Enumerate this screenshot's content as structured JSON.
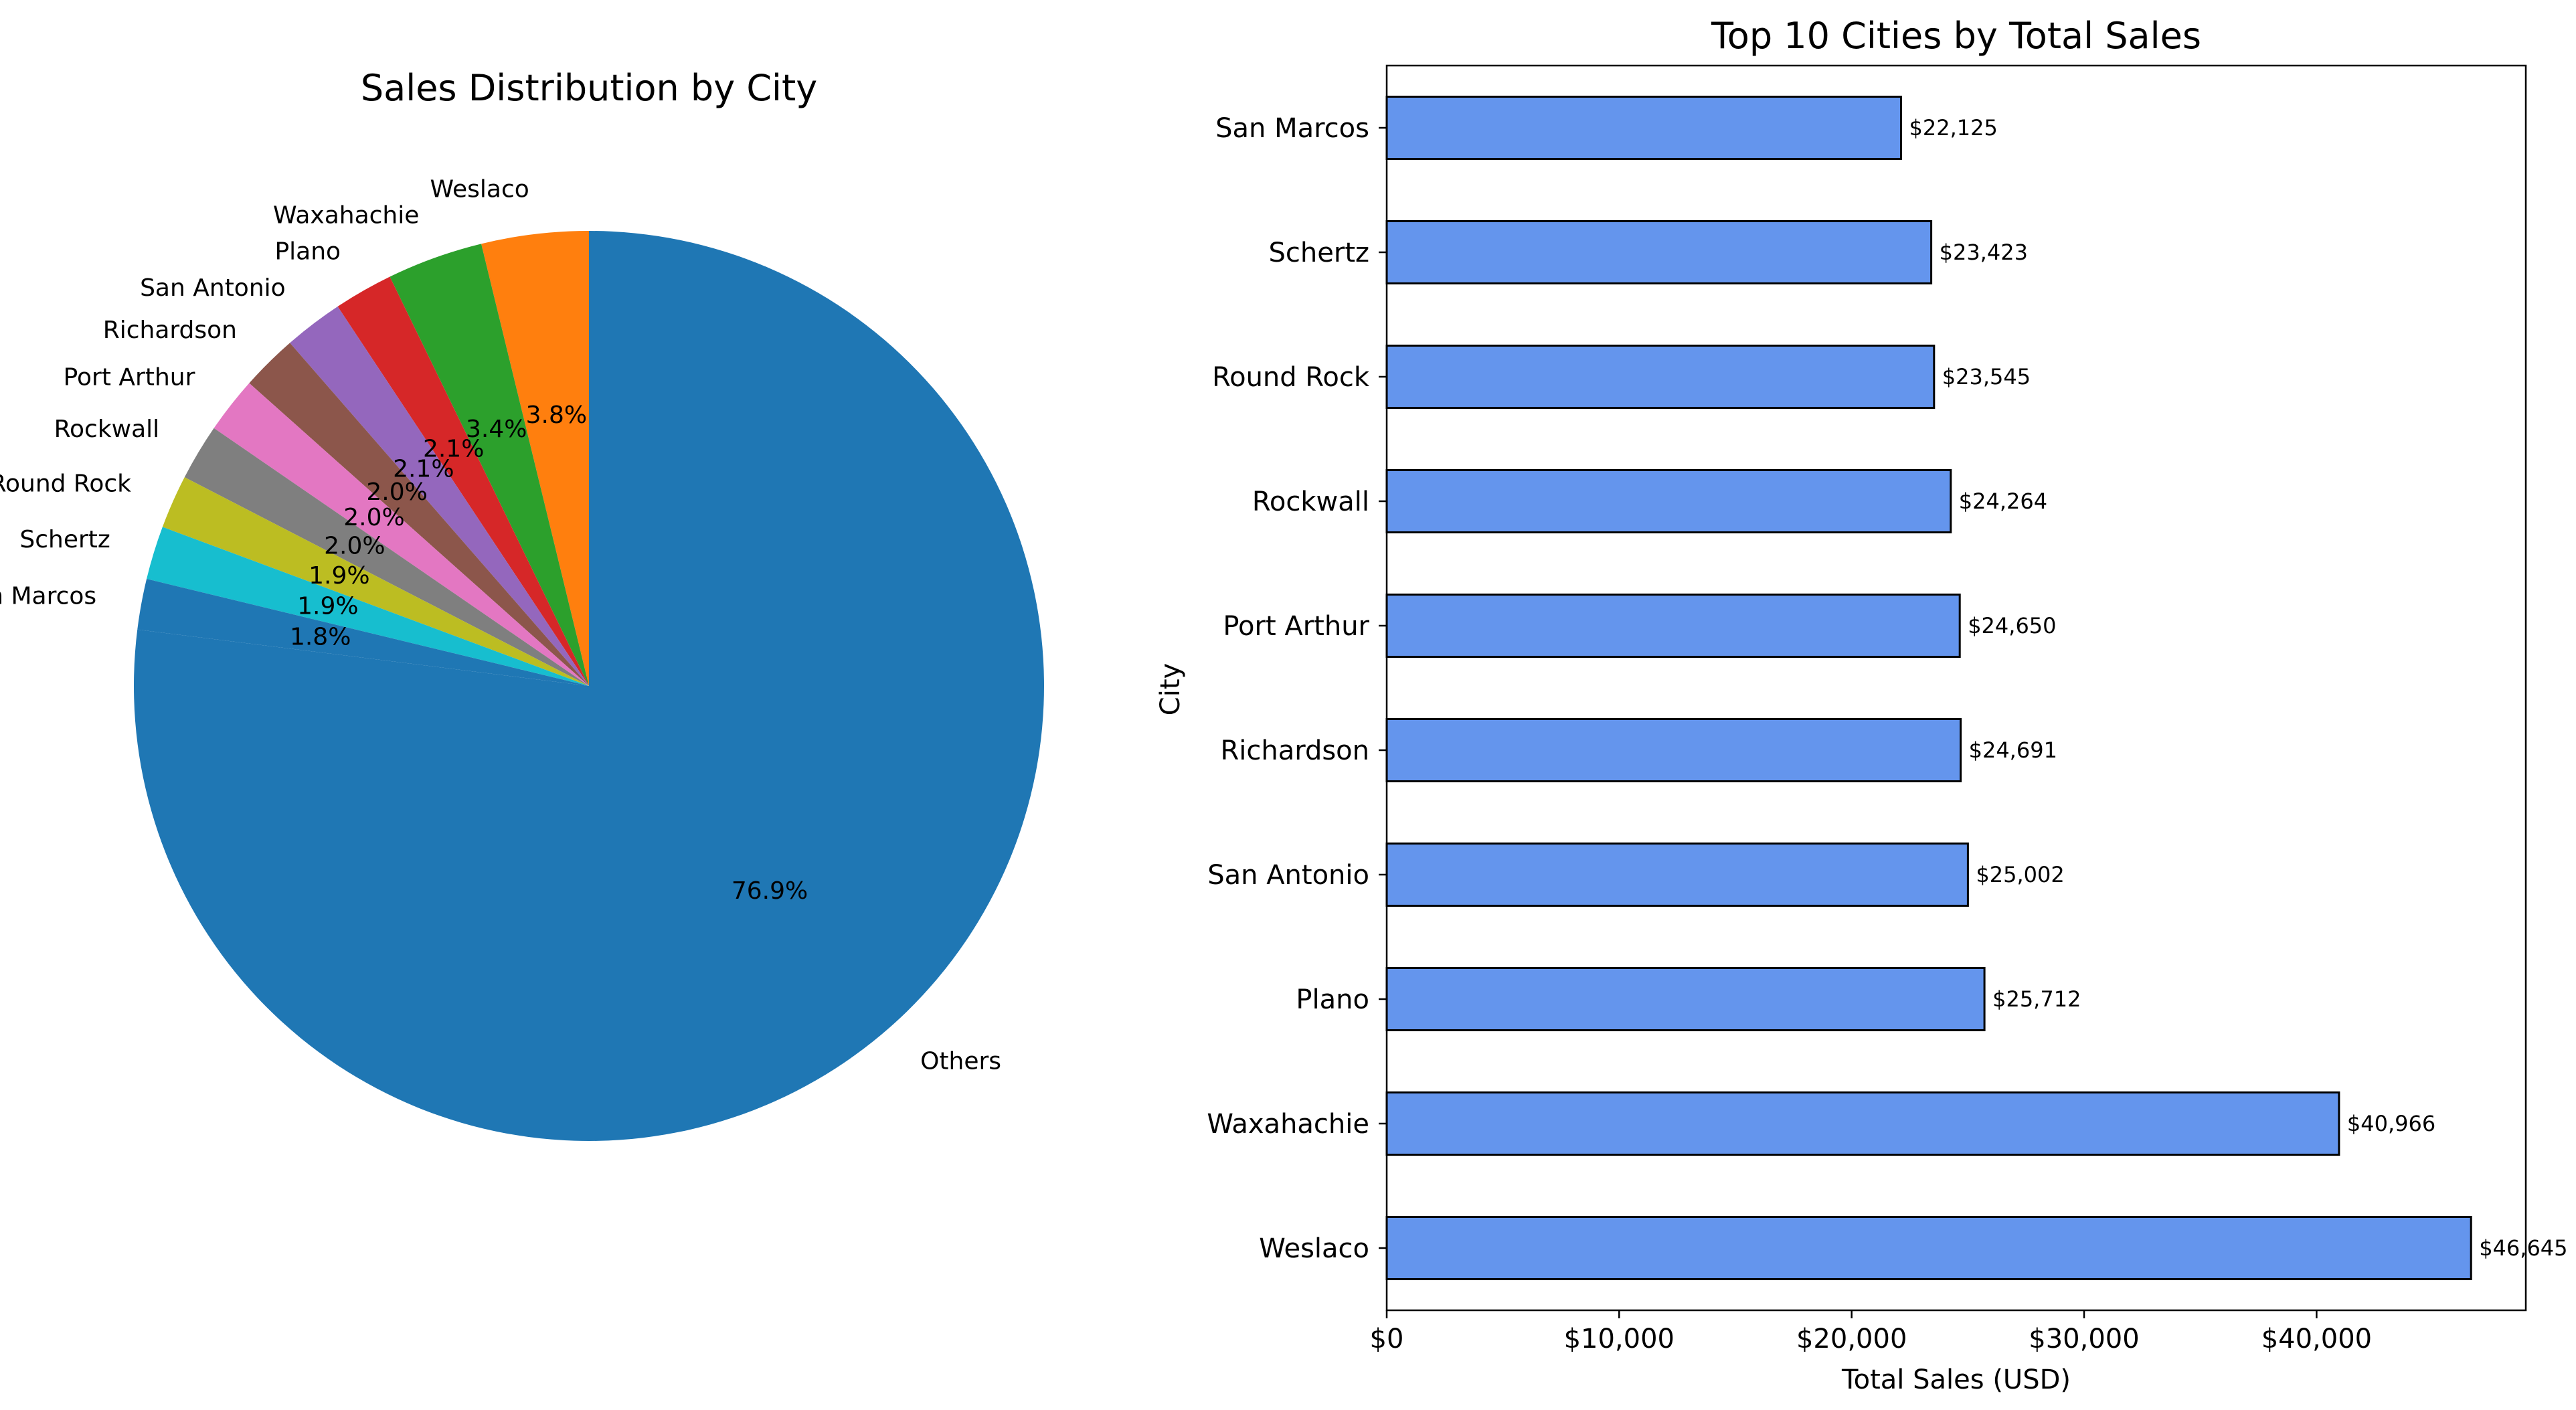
{
  "chart_data": [
    {
      "type": "pie",
      "title": "Sales Distribution by City",
      "slices": [
        {
          "label": "Others",
          "value": 76.9,
          "pct_label": "76.9%",
          "color": "#1f77b4"
        },
        {
          "label": "Weslaco",
          "value": 3.8,
          "pct_label": "3.8%",
          "color": "#ff7f0e"
        },
        {
          "label": "Waxahachie",
          "value": 3.4,
          "pct_label": "3.4%",
          "color": "#2ca02c"
        },
        {
          "label": "Plano",
          "value": 2.1,
          "pct_label": "2.1%",
          "color": "#d62728"
        },
        {
          "label": "San Antonio",
          "value": 2.1,
          "pct_label": "2.1%",
          "color": "#9467bd"
        },
        {
          "label": "Richardson",
          "value": 2.0,
          "pct_label": "2.0%",
          "color": "#8c564b"
        },
        {
          "label": "Port Arthur",
          "value": 2.0,
          "pct_label": "2.0%",
          "color": "#e377c2"
        },
        {
          "label": "Rockwall",
          "value": 2.0,
          "pct_label": "2.0%",
          "color": "#7f7f7f"
        },
        {
          "label": "Round Rock",
          "value": 1.9,
          "pct_label": "1.9%",
          "color": "#bcbd22"
        },
        {
          "label": "Schertz",
          "value": 1.9,
          "pct_label": "1.9%",
          "color": "#17becf"
        },
        {
          "label": "San Marcos",
          "value": 1.8,
          "pct_label": "1.8%",
          "color": "#1f77b4"
        }
      ]
    },
    {
      "type": "bar",
      "orientation": "horizontal",
      "title": "Top 10 Cities by Total Sales",
      "xlabel": "Total Sales (USD)",
      "ylabel": "City",
      "xlim": [
        0,
        49000
      ],
      "xticks": [
        0,
        10000,
        20000,
        30000,
        40000
      ],
      "xtick_labels": [
        "$0",
        "$10,000",
        "$20,000",
        "$30,000",
        "$40,000"
      ],
      "bar_color": "#6495ed",
      "categories": [
        "San Marcos",
        "Schertz",
        "Round Rock",
        "Rockwall",
        "Port Arthur",
        "Richardson",
        "San Antonio",
        "Plano",
        "Waxahachie",
        "Weslaco"
      ],
      "values": [
        22125,
        23423,
        23545,
        24264,
        24650,
        24691,
        25002,
        25712,
        40966,
        46645
      ],
      "value_labels": [
        "$22,125",
        "$23,423",
        "$23,545",
        "$24,264",
        "$24,650",
        "$24,691",
        "$25,002",
        "$25,712",
        "$40,966",
        "$46,645"
      ]
    }
  ]
}
